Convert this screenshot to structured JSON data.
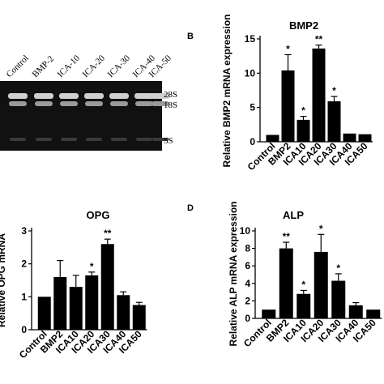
{
  "gel": {
    "lanes": [
      "Control",
      "BMP-2",
      "ICA-10",
      "ICA-20",
      "ICA-30",
      "ICA-40",
      "ICA-50"
    ],
    "markers": [
      "28S",
      "18S",
      "5S"
    ]
  },
  "chart_data": [
    {
      "type": "bar",
      "panel_label": "B",
      "title": "BMP2",
      "ylabel": "Relative BMP2 mRNA expression",
      "ylim": [
        0,
        15
      ],
      "yticks": [
        0,
        5,
        10,
        15
      ],
      "categories": [
        "Control",
        "BMP2",
        "ICA10",
        "ICA20",
        "ICA30",
        "ICA40",
        "ICA50"
      ],
      "values": [
        1.0,
        10.4,
        3.2,
        13.6,
        5.9,
        1.2,
        1.1
      ],
      "errors": [
        0,
        2.3,
        0.5,
        0.5,
        0.7,
        0,
        0
      ],
      "significance": [
        "",
        "*",
        "*",
        "**",
        "*",
        "",
        ""
      ]
    },
    {
      "type": "bar",
      "panel_label": "",
      "title": "OPG",
      "ylabel": "Relative OPG mRNA",
      "ylim": [
        0,
        3
      ],
      "yticks": [
        0,
        1,
        2,
        3
      ],
      "categories": [
        "Control",
        "BMP2",
        "ICA10",
        "ICA20",
        "ICA30",
        "ICA40",
        "ICA50"
      ],
      "values": [
        1.0,
        1.6,
        1.3,
        1.65,
        2.6,
        1.05,
        0.75
      ],
      "errors": [
        0,
        0.5,
        0.35,
        0.1,
        0.15,
        0.1,
        0.08
      ],
      "significance": [
        "",
        "",
        "",
        "*",
        "**",
        "",
        ""
      ]
    },
    {
      "type": "bar",
      "panel_label": "D",
      "title": "ALP",
      "ylabel": "Relative ALP mRNA expression",
      "ylim": [
        0,
        10
      ],
      "yticks": [
        0,
        2,
        4,
        6,
        8,
        10
      ],
      "categories": [
        "Control",
        "BMP2",
        "ICA10",
        "ICA20",
        "ICA30",
        "ICA40",
        "ICA50"
      ],
      "values": [
        1.0,
        8.0,
        2.8,
        7.6,
        4.3,
        1.5,
        1.0
      ],
      "errors": [
        0,
        0.7,
        0.4,
        2.0,
        0.8,
        0.3,
        0
      ],
      "significance": [
        "",
        "**",
        "*",
        "*",
        "*",
        "",
        ""
      ]
    }
  ]
}
